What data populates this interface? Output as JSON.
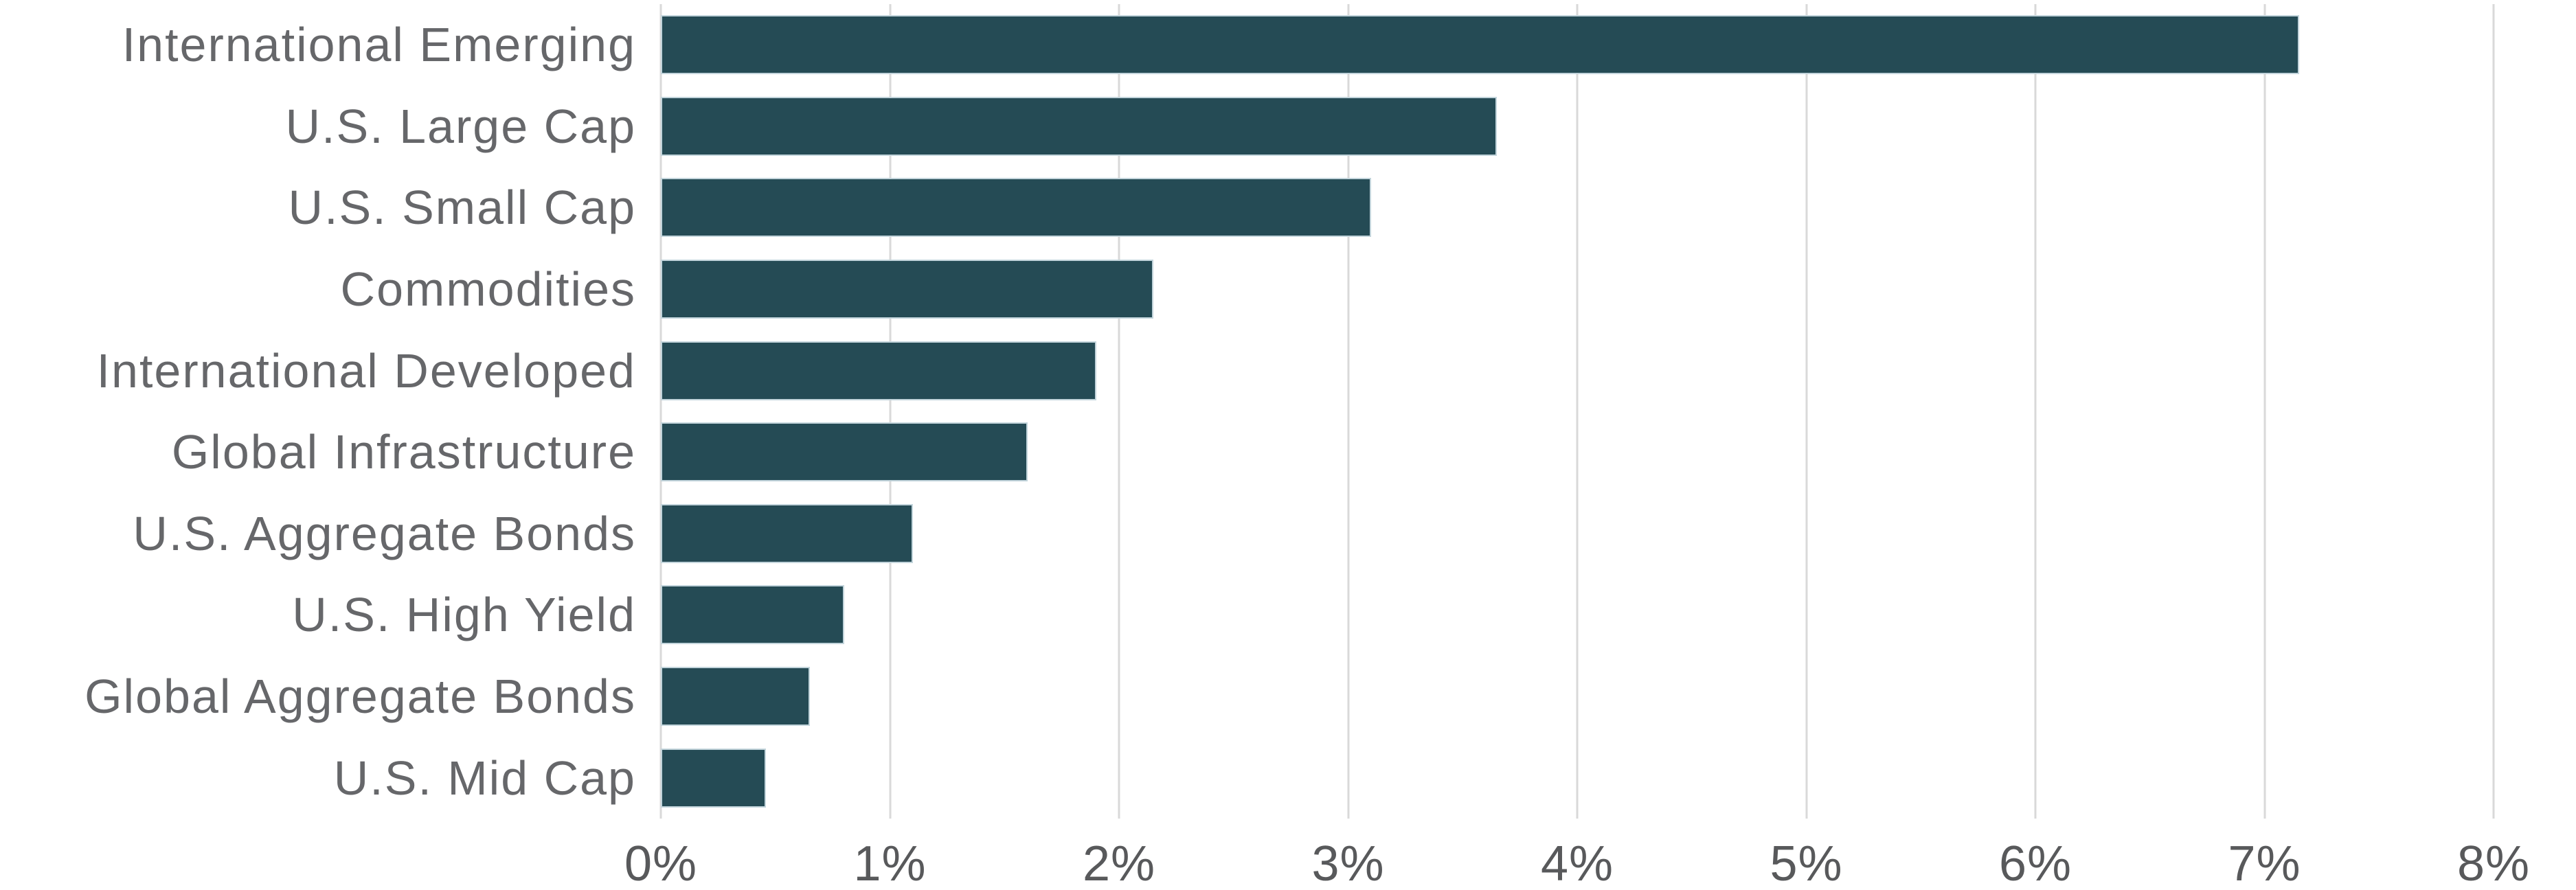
{
  "chart_data": {
    "type": "bar",
    "orientation": "horizontal",
    "title": "",
    "xlabel": "",
    "ylabel": "",
    "categories": [
      "International Emerging",
      "U.S. Large Cap",
      "U.S. Small Cap",
      "Commodities",
      "International Developed",
      "Global Infrastructure",
      "U.S. Aggregate Bonds",
      "U.S. High Yield",
      "Global Aggregate Bonds",
      "U.S. Mid Cap"
    ],
    "values": [
      7.15,
      3.65,
      3.1,
      2.15,
      1.9,
      1.6,
      1.1,
      0.8,
      0.65,
      0.46
    ],
    "value_unit": "%",
    "xlim": [
      0,
      8
    ],
    "x_tick_labels": [
      "0%",
      "1%",
      "2%",
      "3%",
      "4%",
      "5%",
      "6%",
      "7%",
      "8%"
    ],
    "grid": "vertical-only",
    "legend": "none",
    "colors": {
      "bar": "#254b55",
      "bar_border": "#c2d4db",
      "gridline": "#d9d9d9",
      "category_label": "#66676a",
      "tick_label": "#58595b",
      "background": "#ffffff"
    }
  }
}
